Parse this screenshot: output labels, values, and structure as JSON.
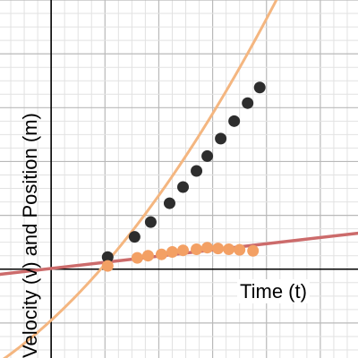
{
  "chart_data": {
    "type": "scatter",
    "title": "",
    "xlabel": "Time (t)",
    "ylabel": "Velocity (v) and Position (m)",
    "xlim": [
      -1.9,
      11.4
    ],
    "ylim": [
      -3.3,
      10.0
    ],
    "grid": true,
    "series": [
      {
        "kind": "points",
        "color": "#2d2d2d",
        "points": [
          [
            2.1,
            0.45
          ],
          [
            3.1,
            1.2
          ],
          [
            3.7,
            1.75
          ],
          [
            4.4,
            2.45
          ],
          [
            4.9,
            3.05
          ],
          [
            5.4,
            3.65
          ],
          [
            5.8,
            4.2
          ],
          [
            6.3,
            4.85
          ],
          [
            6.8,
            5.5
          ],
          [
            7.3,
            6.17
          ],
          [
            7.75,
            6.75
          ]
        ]
      },
      {
        "kind": "points",
        "color": "#f3a064",
        "points": [
          [
            2.1,
            0.12
          ],
          [
            3.2,
            0.42
          ],
          [
            3.6,
            0.5
          ],
          [
            4.1,
            0.55
          ],
          [
            4.5,
            0.64
          ],
          [
            4.9,
            0.7
          ],
          [
            5.4,
            0.74
          ],
          [
            5.8,
            0.8
          ],
          [
            6.2,
            0.77
          ],
          [
            6.6,
            0.74
          ],
          [
            7.0,
            0.72
          ],
          [
            7.5,
            0.68
          ]
        ]
      },
      {
        "kind": "curve",
        "color": "#f4b680",
        "equation": "quadratic",
        "coefficients": {
          "a": 0.06,
          "b": 0.92,
          "c": -1.9
        }
      },
      {
        "kind": "line",
        "color": "#cc6b6b",
        "equation": "linear",
        "coefficients": {
          "m": 0.115,
          "c": 0.025
        }
      }
    ]
  }
}
